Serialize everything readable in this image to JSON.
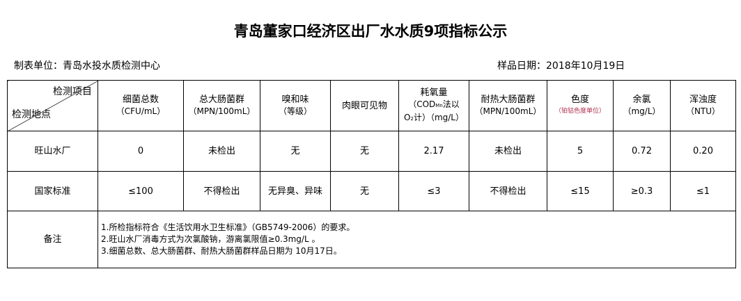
{
  "title": "青岛董家口经济区出厂水水质9项指标公示",
  "unit": "制表单位：青岛水投水质检测中心",
  "sample_date": "样品日期：2018年10月19日",
  "header": {
    "corner_item": "检测项目",
    "corner_site": "检测地点",
    "cols": [
      {
        "name": "细菌总数",
        "unit": "（CFU/mL）"
      },
      {
        "name": "总大肠菌群",
        "unit": "（MPN/100mL）"
      },
      {
        "name": "嗅和味",
        "unit": "（等级）"
      },
      {
        "name": "肉眼可见物",
        "unit": ""
      },
      {
        "name": "耗氧量",
        "unit_a": "（COD",
        "unit_sub": "Mn",
        "unit_b": "法以",
        "unit_c": "O",
        "unit_sub2": "2",
        "unit_d": "计）（mg/L）"
      },
      {
        "name": "耐热大肠菌群",
        "unit": "（MPN/100mL）"
      },
      {
        "name": "色度",
        "unit": "（铂钴色度单位）"
      },
      {
        "name": "余氯",
        "unit": "（mg/L）"
      },
      {
        "name": "浑浊度",
        "unit": "（NTU）"
      }
    ]
  },
  "rows": [
    {
      "site": "旺山水厂",
      "values": [
        "0",
        "未检出",
        "无",
        "无",
        "2.17",
        "未检出",
        "5",
        "0.72",
        "0.20"
      ]
    },
    {
      "site": "国家标准",
      "values": [
        "≤100",
        "不得检出",
        "无异臭、异味",
        "无",
        "≤3",
        "不得检出",
        "≤15",
        "≥0.3",
        "≤1"
      ]
    }
  ],
  "remarks_label": "备注",
  "remarks": [
    "1.所检指标符合《生活饮用水卫生标准》（GB5749-2006）的要求。",
    "2.旺山水厂消毒方式为次氯酸钠，游离氯限值≥0.3mg/L 。",
    "3.细菌总数、总大肠菌群、耐热大肠菌群样品日期为 10月17日。"
  ]
}
